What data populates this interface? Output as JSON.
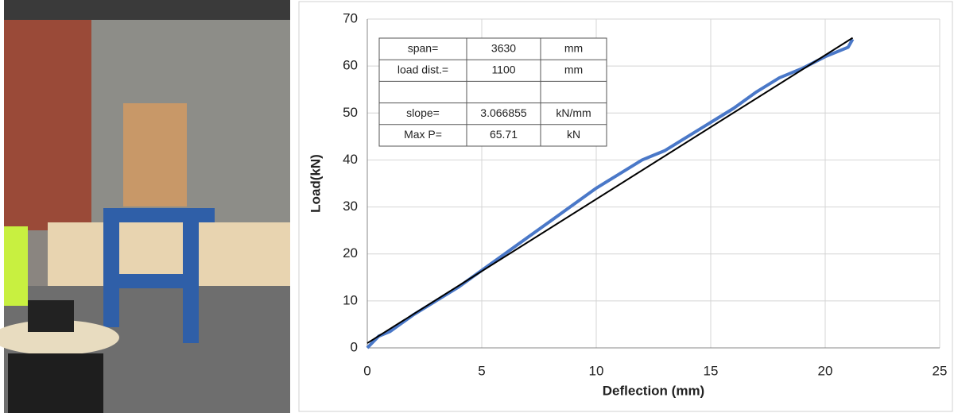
{
  "chart_data": {
    "type": "line",
    "x_label": "Deflection (mm)",
    "y_label": "Load(kN)",
    "xlim": [
      0,
      25
    ],
    "xticks": [
      0,
      5,
      10,
      15,
      20,
      25
    ],
    "ylim": [
      0,
      70
    ],
    "yticks": [
      0,
      10,
      20,
      30,
      40,
      50,
      60,
      70
    ],
    "grid": true,
    "series": [
      {
        "color": "#4a78c8",
        "x": [
          0,
          0.5,
          1,
          2,
          3,
          4,
          5,
          6,
          7,
          8,
          9,
          10,
          11,
          12,
          12.5,
          13,
          14,
          15,
          16,
          17,
          18,
          19,
          20,
          21,
          21.2
        ],
        "values": [
          0,
          2.5,
          3.5,
          7,
          10,
          13,
          16.5,
          20,
          23.5,
          27,
          30.5,
          34,
          37,
          40,
          41,
          42,
          45,
          48,
          51,
          54.5,
          57.5,
          59.5,
          62,
          64,
          65.7
        ]
      },
      {
        "color": "#000000",
        "x": [
          0,
          21.2
        ],
        "values": [
          1,
          66
        ]
      }
    ],
    "table": {
      "rows": [
        [
          "span=",
          "3630",
          "mm"
        ],
        [
          "load dist.=",
          "1100",
          "mm"
        ],
        [
          "slope=",
          "3.066855",
          "kN/mm"
        ],
        [
          "Max P=",
          "65.71",
          "kN"
        ]
      ]
    }
  }
}
